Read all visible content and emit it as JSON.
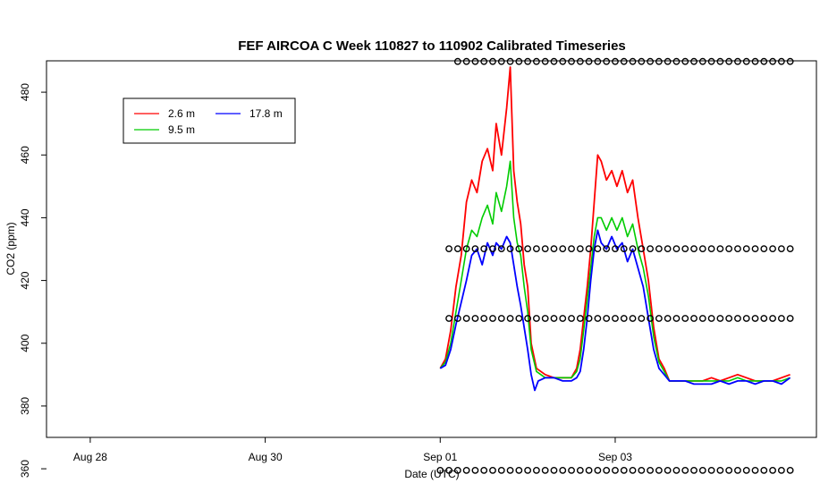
{
  "chart_data": {
    "type": "line",
    "title": "FEF AIRCOA C  Week 110827 to 110902  Calibrated Timeseries",
    "xlabel": "Date (UTC)",
    "ylabel": "CO2 (ppm)",
    "xlim": [
      -1.25,
      3.15
    ],
    "ylim": [
      370,
      490
    ],
    "x_ticks": [
      {
        "value": -1,
        "label": "Aug 28"
      },
      {
        "value": 0,
        "label": "Aug 30"
      },
      {
        "value": 1,
        "label": "Sep 01"
      },
      {
        "value": 2,
        "label": "Sep 03"
      }
    ],
    "y_ticks": [
      360,
      380,
      400,
      420,
      440,
      460,
      480
    ],
    "x_unit_note": "",
    "legend": {
      "position": "top-left",
      "entries": [
        {
          "label": "2.6 m",
          "color": "#ff0000"
        },
        {
          "label": "9.5 m",
          "color": "#00cc00"
        },
        {
          "label": "17.8 m",
          "color": "#0000ff"
        }
      ]
    },
    "series": [
      {
        "name": "2.6 m",
        "color": "#ff0000",
        "points": [
          [
            1.0,
            392
          ],
          [
            1.03,
            395
          ],
          [
            1.06,
            404
          ],
          [
            1.09,
            418
          ],
          [
            1.12,
            428
          ],
          [
            1.15,
            445
          ],
          [
            1.18,
            452
          ],
          [
            1.21,
            448
          ],
          [
            1.24,
            458
          ],
          [
            1.27,
            462
          ],
          [
            1.3,
            455
          ],
          [
            1.32,
            470
          ],
          [
            1.35,
            460
          ],
          [
            1.38,
            475
          ],
          [
            1.4,
            488
          ],
          [
            1.42,
            455
          ],
          [
            1.44,
            445
          ],
          [
            1.46,
            438
          ],
          [
            1.48,
            425
          ],
          [
            1.5,
            418
          ],
          [
            1.52,
            400
          ],
          [
            1.55,
            392
          ],
          [
            1.6,
            390
          ],
          [
            1.65,
            389
          ],
          [
            1.7,
            389
          ],
          [
            1.75,
            389
          ],
          [
            1.78,
            392
          ],
          [
            1.8,
            398
          ],
          [
            1.82,
            408
          ],
          [
            1.84,
            418
          ],
          [
            1.86,
            430
          ],
          [
            1.88,
            445
          ],
          [
            1.9,
            460
          ],
          [
            1.92,
            458
          ],
          [
            1.95,
            452
          ],
          [
            1.98,
            455
          ],
          [
            2.01,
            450
          ],
          [
            2.04,
            455
          ],
          [
            2.07,
            448
          ],
          [
            2.1,
            452
          ],
          [
            2.13,
            440
          ],
          [
            2.16,
            430
          ],
          [
            2.19,
            420
          ],
          [
            2.22,
            405
          ],
          [
            2.25,
            395
          ],
          [
            2.28,
            392
          ],
          [
            2.31,
            388
          ],
          [
            2.35,
            388
          ],
          [
            2.4,
            388
          ],
          [
            2.45,
            388
          ],
          [
            2.5,
            388
          ],
          [
            2.55,
            389
          ],
          [
            2.6,
            388
          ],
          [
            2.65,
            389
          ],
          [
            2.7,
            390
          ],
          [
            2.75,
            389
          ],
          [
            2.8,
            388
          ],
          [
            2.85,
            388
          ],
          [
            2.9,
            388
          ],
          [
            2.95,
            389
          ],
          [
            3.0,
            390
          ]
        ]
      },
      {
        "name": "9.5 m",
        "color": "#00cc00",
        "points": [
          [
            1.0,
            392
          ],
          [
            1.03,
            394
          ],
          [
            1.06,
            400
          ],
          [
            1.09,
            410
          ],
          [
            1.12,
            420
          ],
          [
            1.15,
            430
          ],
          [
            1.18,
            436
          ],
          [
            1.21,
            434
          ],
          [
            1.24,
            440
          ],
          [
            1.27,
            444
          ],
          [
            1.3,
            438
          ],
          [
            1.32,
            448
          ],
          [
            1.35,
            442
          ],
          [
            1.38,
            450
          ],
          [
            1.4,
            458
          ],
          [
            1.42,
            440
          ],
          [
            1.44,
            432
          ],
          [
            1.46,
            428
          ],
          [
            1.48,
            418
          ],
          [
            1.5,
            410
          ],
          [
            1.52,
            398
          ],
          [
            1.55,
            391
          ],
          [
            1.6,
            389
          ],
          [
            1.65,
            389
          ],
          [
            1.7,
            389
          ],
          [
            1.75,
            389
          ],
          [
            1.78,
            391
          ],
          [
            1.8,
            395
          ],
          [
            1.82,
            404
          ],
          [
            1.84,
            414
          ],
          [
            1.86,
            424
          ],
          [
            1.88,
            434
          ],
          [
            1.9,
            440
          ],
          [
            1.92,
            440
          ],
          [
            1.95,
            436
          ],
          [
            1.98,
            440
          ],
          [
            2.01,
            436
          ],
          [
            2.04,
            440
          ],
          [
            2.07,
            434
          ],
          [
            2.1,
            438
          ],
          [
            2.13,
            430
          ],
          [
            2.16,
            424
          ],
          [
            2.19,
            415
          ],
          [
            2.22,
            402
          ],
          [
            2.25,
            394
          ],
          [
            2.28,
            391
          ],
          [
            2.31,
            388
          ],
          [
            2.35,
            388
          ],
          [
            2.4,
            388
          ],
          [
            2.45,
            388
          ],
          [
            2.5,
            388
          ],
          [
            2.55,
            388
          ],
          [
            2.6,
            388
          ],
          [
            2.65,
            388
          ],
          [
            2.7,
            389
          ],
          [
            2.75,
            388
          ],
          [
            2.8,
            388
          ],
          [
            2.85,
            388
          ],
          [
            2.9,
            388
          ],
          [
            2.95,
            388
          ],
          [
            3.0,
            389
          ]
        ]
      },
      {
        "name": "17.8 m",
        "color": "#0000ff",
        "points": [
          [
            1.0,
            392
          ],
          [
            1.03,
            393
          ],
          [
            1.06,
            398
          ],
          [
            1.09,
            406
          ],
          [
            1.12,
            413
          ],
          [
            1.15,
            420
          ],
          [
            1.18,
            428
          ],
          [
            1.21,
            430
          ],
          [
            1.24,
            425
          ],
          [
            1.27,
            432
          ],
          [
            1.3,
            428
          ],
          [
            1.32,
            432
          ],
          [
            1.35,
            430
          ],
          [
            1.38,
            434
          ],
          [
            1.4,
            432
          ],
          [
            1.42,
            425
          ],
          [
            1.44,
            418
          ],
          [
            1.46,
            412
          ],
          [
            1.48,
            405
          ],
          [
            1.5,
            398
          ],
          [
            1.52,
            390
          ],
          [
            1.54,
            385
          ],
          [
            1.56,
            388
          ],
          [
            1.6,
            389
          ],
          [
            1.65,
            389
          ],
          [
            1.7,
            388
          ],
          [
            1.75,
            388
          ],
          [
            1.78,
            389
          ],
          [
            1.8,
            391
          ],
          [
            1.82,
            398
          ],
          [
            1.84,
            408
          ],
          [
            1.86,
            420
          ],
          [
            1.88,
            430
          ],
          [
            1.9,
            436
          ],
          [
            1.92,
            432
          ],
          [
            1.95,
            430
          ],
          [
            1.98,
            434
          ],
          [
            2.01,
            430
          ],
          [
            2.04,
            432
          ],
          [
            2.07,
            426
          ],
          [
            2.1,
            430
          ],
          [
            2.13,
            424
          ],
          [
            2.16,
            418
          ],
          [
            2.19,
            408
          ],
          [
            2.22,
            398
          ],
          [
            2.25,
            392
          ],
          [
            2.28,
            390
          ],
          [
            2.31,
            388
          ],
          [
            2.35,
            388
          ],
          [
            2.4,
            388
          ],
          [
            2.45,
            387
          ],
          [
            2.5,
            387
          ],
          [
            2.55,
            387
          ],
          [
            2.6,
            388
          ],
          [
            2.65,
            387
          ],
          [
            2.7,
            388
          ],
          [
            2.75,
            388
          ],
          [
            2.8,
            387
          ],
          [
            2.85,
            388
          ],
          [
            2.9,
            388
          ],
          [
            2.95,
            387
          ],
          [
            3.0,
            389
          ]
        ]
      }
    ],
    "markers": {
      "symbol": "o",
      "color": "#000000",
      "rows": [
        {
          "y": 489.8,
          "x": [
            1.1,
            1.15,
            1.2,
            1.25,
            1.3,
            1.35,
            1.4,
            1.45,
            1.5,
            1.55,
            1.6,
            1.65,
            1.7,
            1.75,
            1.8,
            1.85,
            1.9,
            1.95,
            2.0,
            2.05,
            2.1,
            2.15,
            2.2,
            2.25,
            2.3,
            2.35,
            2.4,
            2.45,
            2.5,
            2.55,
            2.6,
            2.65,
            2.7,
            2.75,
            2.8,
            2.85,
            2.9,
            2.95,
            3.0
          ]
        },
        {
          "y": 430.1,
          "x": [
            1.05,
            1.1,
            1.15,
            1.2,
            1.25,
            1.3,
            1.35,
            1.4,
            1.45,
            1.5,
            1.55,
            1.6,
            1.65,
            1.7,
            1.75,
            1.8,
            1.85,
            1.9,
            1.95,
            2.0,
            2.05,
            2.1,
            2.15,
            2.2,
            2.25,
            2.3,
            2.35,
            2.4,
            2.45,
            2.5,
            2.55,
            2.6,
            2.65,
            2.7,
            2.75,
            2.8,
            2.85,
            2.9,
            2.95,
            3.0
          ]
        },
        {
          "y": 407.9,
          "x": [
            1.05,
            1.1,
            1.15,
            1.2,
            1.25,
            1.3,
            1.35,
            1.4,
            1.45,
            1.5,
            1.55,
            1.6,
            1.65,
            1.7,
            1.75,
            1.8,
            1.85,
            1.9,
            1.95,
            2.0,
            2.05,
            2.1,
            2.15,
            2.2,
            2.25,
            2.3,
            2.35,
            2.4,
            2.45,
            2.5,
            2.55,
            2.6,
            2.65,
            2.7,
            2.75,
            2.8,
            2.85,
            2.9,
            2.95,
            3.0
          ]
        },
        {
          "y": 359.5,
          "x": [
            1.0,
            1.05,
            1.1,
            1.15,
            1.2,
            1.25,
            1.3,
            1.35,
            1.4,
            1.45,
            1.5,
            1.55,
            1.6,
            1.65,
            1.7,
            1.75,
            1.8,
            1.85,
            1.9,
            1.95,
            2.0,
            2.05,
            2.1,
            2.15,
            2.2,
            2.25,
            2.3,
            2.35,
            2.4,
            2.45,
            2.5,
            2.55,
            2.6,
            2.65,
            2.7,
            2.75,
            2.8,
            2.85,
            2.9,
            2.95,
            3.0
          ]
        }
      ]
    }
  }
}
